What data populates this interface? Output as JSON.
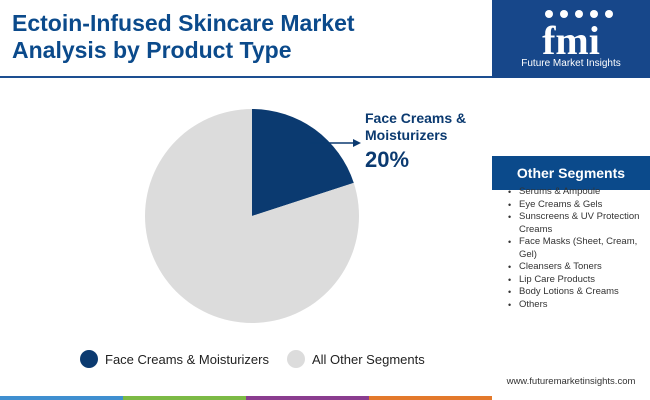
{
  "title_lines": [
    "Ectoin-Infused Skincare Market",
    "Analysis by Product Type"
  ],
  "brand": {
    "logo_text": "fmi",
    "name": "Future Market Insights",
    "background": "#17478a"
  },
  "chart_data": {
    "type": "pie",
    "slices": [
      {
        "label": "Face Creams & Moisturizers",
        "value": 20,
        "color": "#0b3a70"
      },
      {
        "label": "All Other Segments",
        "value": 80,
        "color": "#dcdcdc"
      }
    ],
    "callout": {
      "label_lines": [
        "Face Creams &",
        "Moisturizers"
      ],
      "value": "20%"
    },
    "legend": [
      {
        "label": "Face Creams & Moisturizers",
        "color": "#0b3a70"
      },
      {
        "label": "All Other Segments",
        "color": "#dcdcdc"
      }
    ],
    "legend_position": "bottom"
  },
  "sidebar": {
    "heading": "Other Segments",
    "items": [
      "Serums & Ampoule",
      "Eye Creams & Gels",
      "Sunscreens & UV Protection Creams",
      "Face Masks (Sheet, Cream, Gel)",
      "Cleansers & Toners",
      "Lip Care Products",
      "Body Lotions & Creams",
      "Others"
    ],
    "url": "www.futuremarketinsights.com"
  },
  "footer_colors": [
    "#3f8fd0",
    "#7cba45",
    "#8a3d8f",
    "#e3792b"
  ]
}
